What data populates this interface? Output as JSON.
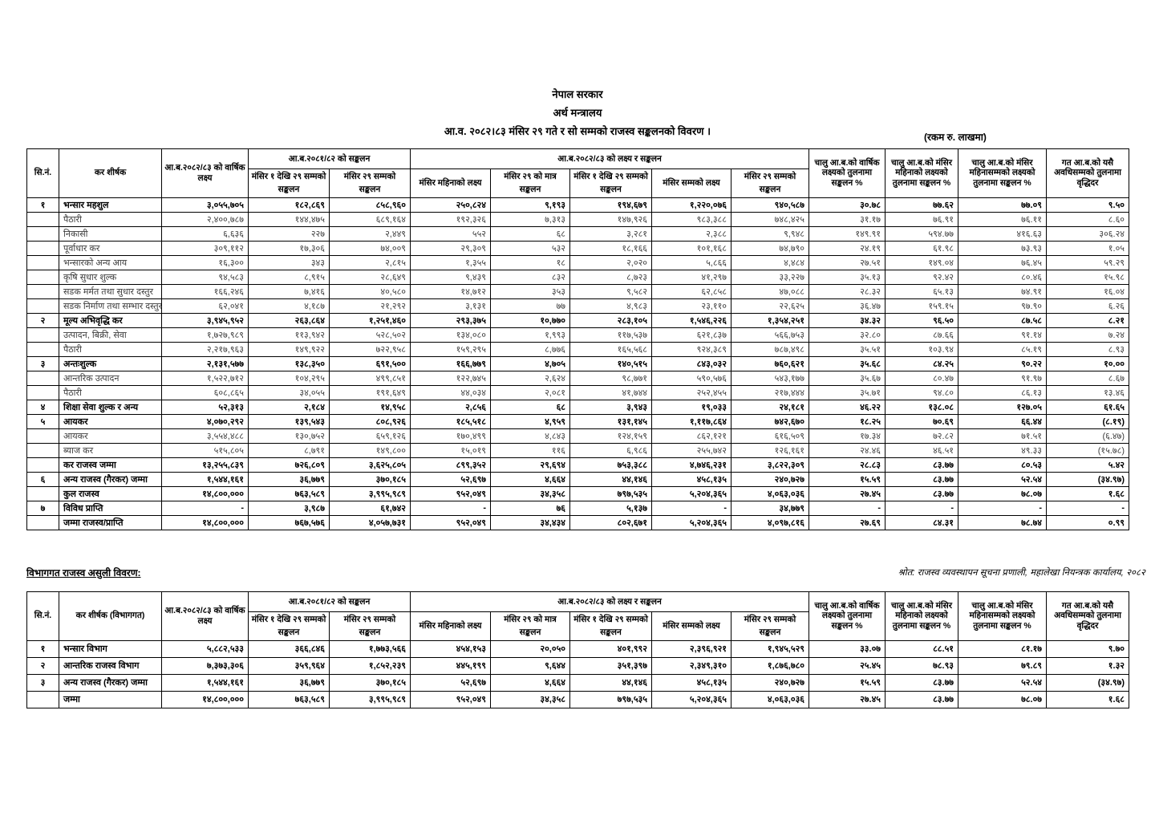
{
  "header": {
    "line1": "नेपाल सरकार",
    "line2": "अर्थ मन्त्रालय",
    "line3": "आ.व. २०८२।८३ मंसिर २९ गते र सो सम्मको राजस्व सङ्कलनको विवरण ।",
    "unit_note": "(रकम रु. लाखमा)"
  },
  "section2": {
    "title": "विभागगत राजस्व असुली विवरण:",
    "source": "श्रोत: राजस्व व्यवस्थापन सूचना प्रणाली, महालेखा नियन्त्रक कार्यालय, २०८२"
  },
  "table1": {
    "head": {
      "sn": "सि.नं.",
      "title": "कर शीर्षक",
      "annual": "आ.ब.२०८२/८३ को वार्षिक लक्ष्य",
      "prev_group": "आ.ब.२०८१/८२ को सङ्कलन",
      "prev_1_29": "मंसिर १ देखि २९ सम्मको सङ्कलन",
      "prev_till_29": "मंसिर २९ सम्मको सङ्कलन",
      "cur_group": "आ.ब.२०८२/८३ को लक्ष्य र सङ्कलन",
      "cur_month_target": "मंसिर महिनाको लक्ष्य",
      "cur_29_only": "मंसिर २९ को मात्र सङ्कलन",
      "cur_1_29": "मंसिर १ देखि २९ सम्मको सङ्कलन",
      "cur_till_target": "मंसिर सम्मको लक्ष्य",
      "cur_till_29": "मंसिर २९ सम्मको सङ्कलन",
      "pct_annual": "चालु आ.ब.को वार्षिक लक्ष्यको तुलनामा सङ्कलन %",
      "pct_month": "चालु आ.ब.को मंसिर महिनाको लक्ष्यको तुलनामा सङ्कलन %",
      "pct_till": "चालु आ.ब.को मंसिर महिनासम्मको लक्ष्यको तुलनामा सङ्कलन %",
      "growth": "गत आ.ब.को यसै अवधिसम्मको तुलनामा वृद्धिदर"
    },
    "rows": [
      {
        "sn": "१",
        "title": "भन्सार महशुल",
        "bold": true,
        "cells": [
          "३,०५५,७०५",
          "१८२,८६९",
          "८५८,९६०",
          "२५०,८२४",
          "९,१९३",
          "१९४,६७९",
          "१,२२०,०७६",
          "९४०,५८७",
          "३०.७८",
          "७७.६२",
          "७७.०९",
          "९.५०"
        ]
      },
      {
        "title": "पैठारी",
        "cells": [
          "२,४००,७८७",
          "१४४,४७५",
          "६८९,१६४",
          "१९२,३२६",
          "७,३१३",
          "१४७,९२६",
          "९८३,३८८",
          "७४८,४२५",
          "३१.१७",
          "७६.९१",
          "७६.११",
          "८.६०"
        ]
      },
      {
        "title": "निकासी",
        "cells": [
          "६,६३६",
          "२२७",
          "२,४४९",
          "५५२",
          "६८",
          "३,२८१",
          "२,३८८",
          "९,९४८",
          "१४९.९१",
          "५९४.७७",
          "४१६.६३",
          "३०६.२४"
        ]
      },
      {
        "title": "पूर्वाधार कर",
        "cells": [
          "३०९,११२",
          "१७,३०६",
          "७४,००९",
          "२९,३०९",
          "५३२",
          "१८,१६६",
          "१०१,१६८",
          "७४,७९०",
          "२४.१९",
          "६१.९८",
          "७३.९३",
          "१.०५"
        ]
      },
      {
        "title": "भन्सारको अन्य आय",
        "cells": [
          "१६,३००",
          "३४३",
          "२,८१५",
          "१,३५५",
          "१८",
          "२,०२०",
          "५,८६६",
          "४,४८४",
          "२७.५१",
          "१४९.०४",
          "७६.४५",
          "५९.२९"
        ]
      },
      {
        "title": "कृषि सुधार शुल्क",
        "cells": [
          "९४,५८३",
          "८,९१५",
          "२८,६४९",
          "९,४३९",
          "८३२",
          "८,७२३",
          "४१,२९७",
          "३३,२२७",
          "३५.१३",
          "९२.४२",
          "८०.४६",
          "१५.९८"
        ]
      },
      {
        "title": "सडक मर्मत तथा सुधार दस्तुर",
        "cells": [
          "१६६,२४६",
          "७,४१६",
          "४०,५८०",
          "१४,७१२",
          "३५३",
          "९,५८२",
          "६२,८५८",
          "४७,०८८",
          "२८.३२",
          "६५.१३",
          "७४.९१",
          "१६.०४"
        ]
      },
      {
        "title": "सडक निर्माण तथा सम्भार दस्तुर",
        "cells": [
          "६२,०४१",
          "४,१८७",
          "२१,२९२",
          "३,१३१",
          "७७",
          "४,९८३",
          "२३,११०",
          "२२,६२५",
          "३६.४७",
          "१५९.१५",
          "९७.९०",
          "६.२६"
        ]
      },
      {
        "sn": "२",
        "title": "मूल्य अभिवृद्धि कर",
        "bold": true,
        "cells": [
          "३,९४५,९५२",
          "२६३,८६४",
          "१,२५१,४६०",
          "२९३,३७५",
          "१०,७७०",
          "२८३,१०५",
          "१,५४६,२२६",
          "१,३५४,२५१",
          "३४.३२",
          "९६.५०",
          "८७.५८",
          "८.२१"
        ]
      },
      {
        "title": "उत्पादन, बिक्री, सेवा",
        "cells": [
          "१,७२७,९८९",
          "११३,९४२",
          "५२८,५०२",
          "१३४,०८०",
          "१,९९३",
          "११७,५३७",
          "६२१,८३७",
          "५६६,७५३",
          "३२.८०",
          "८७.६६",
          "९१.१४",
          "७.२४"
        ]
      },
      {
        "title": "पैठारी",
        "cells": [
          "२,२१७,९६३",
          "१४९,९२२",
          "७२२,९५८",
          "१५९,२९५",
          "८,७७६",
          "१६५,५६८",
          "९२४,३८९",
          "७८७,४९८",
          "३५.५१",
          "१०३.९४",
          "८५.१९",
          "८.९३"
        ]
      },
      {
        "sn": "३",
        "title": "अन्तःशुल्क",
        "bold": true,
        "cells": [
          "२,१३१,५७७",
          "१३८,३५०",
          "६९१,५००",
          "१६६,७७९",
          "४,७०५",
          "१४०,५१५",
          "८४३,०३२",
          "७६०,६२१",
          "३५.६८",
          "८४.२५",
          "९०.२२",
          "१०.००"
        ]
      },
      {
        "title": "आन्तरिक उत्पादन",
        "cells": [
          "१,५२२,७१२",
          "१०४,२९५",
          "४९९,८५१",
          "१२२,७४५",
          "२,६२४",
          "९८,७७१",
          "५९०,५७६",
          "५४३,१७७",
          "३५.६७",
          "८०.४७",
          "९१.९७",
          "८.६७"
        ]
      },
      {
        "title": "पैठारी",
        "cells": [
          "६०८,८६५",
          "३४,०५५",
          "१९१,६४९",
          "४४,०३४",
          "२,०८१",
          "४१,७४४",
          "२५२,४५५",
          "२१७,४४४",
          "३५.७१",
          "९४.८०",
          "८६.१३",
          "१३.४६"
        ]
      },
      {
        "sn": "४",
        "title": "शिक्षा सेवा शुल्क र अन्य",
        "bold": true,
        "cells": [
          "५२,३१३",
          "२,१८४",
          "१४,९५८",
          "२,८५६",
          "६८",
          "३,९४३",
          "१९,०३३",
          "२४,१८१",
          "४६.२२",
          "१३८.०८",
          "१२७.०५",
          "६१.६५"
        ]
      },
      {
        "sn": "५",
        "title": "आयकर",
        "bold": true,
        "cells": [
          "४,०७०,२९२",
          "१३९,५४३",
          "८०८,९२६",
          "१८५,५१८",
          "४,९५९",
          "१३१,१४५",
          "१,११७,८६४",
          "७४२,६७०",
          "१८.२५",
          "७०.६९",
          "६६.४४",
          "(८.१९)"
        ]
      },
      {
        "title": "आयकर",
        "cells": [
          "३,५५४,४८८",
          "१३०,७५२",
          "६५९,१२६",
          "१७०,४९९",
          "४,८४३",
          "१२४,१५९",
          "८६२,१२१",
          "६१६,५०९",
          "१७.३४",
          "७२.८२",
          "७१.५१",
          "(६.४७)"
        ]
      },
      {
        "title": "ब्याज कर",
        "cells": [
          "५१५,८०५",
          "८,७९१",
          "१४९,८००",
          "१५,०१९",
          "११६",
          "६,९८६",
          "२५५,७४२",
          "१२६,१६१",
          "२४.४६",
          "४६.५१",
          "४९.३३",
          "(१५.७८)"
        ]
      },
      {
        "title": "कर राजस्व जम्मा",
        "bold": true,
        "cells": [
          "१३,२५५,८३९",
          "७२६,८०९",
          "३,६२५,८०५",
          "८९९,३५२",
          "२९,६९४",
          "७५३,३८८",
          "४,७४६,२३१",
          "३,८२२,३०९",
          "२८.८३",
          "८३.७७",
          "८०.५३",
          "५.४२"
        ]
      },
      {
        "sn": "६",
        "title": "अन्य राजस्व (गैरकर) जम्मा",
        "bold": true,
        "cells": [
          "१,५४४,१६१",
          "३६,७७९",
          "३७०,१८५",
          "५२,६९७",
          "४,६६४",
          "४४,१४६",
          "४५८,१३५",
          "२४०,७२७",
          "१५.५९",
          "८३.७७",
          "५२.५४",
          "(३४.९७)"
        ]
      },
      {
        "title": "कुल राजस्व",
        "bold": true,
        "cells": [
          "१४,८००,०००",
          "७६३,५८९",
          "३,९९५,९८९",
          "९५२,०४९",
          "३४,३५८",
          "७९७,५३५",
          "५,२०४,३६५",
          "४,०६३,०३६",
          "२७.४५",
          "८३.७७",
          "७८.०७",
          "१.६८"
        ]
      },
      {
        "sn": "७",
        "title": "विविध प्राप्ति",
        "bold": true,
        "cells": [
          "-",
          "३,९८७",
          "६१,७४२",
          "-",
          "७६",
          "५,१३७",
          "-",
          "३४,७७९",
          "-",
          "-",
          "-",
          "-"
        ]
      },
      {
        "title": "जम्मा राजस्व/प्राप्ति",
        "bold": true,
        "cells": [
          "१४,८००,०००",
          "७६७,५७६",
          "४,०५७,७३१",
          "९५२,०४९",
          "३४,४३४",
          "८०२,६७१",
          "५,२०४,३६५",
          "४,०९७,८१६",
          "२७.६९",
          "८४.३१",
          "७८.७४",
          "०.९९"
        ]
      }
    ]
  },
  "table2": {
    "head": {
      "sn": "सि.नं.",
      "title": "कर शीर्षक (विभागगत)",
      "annual": "आ.ब.२०८२/८३ को वार्षिक लक्ष्य",
      "prev_group": "आ.ब.२०८१/८२ को सङ्कलन",
      "prev_1_29": "मंसिर १ देखि २९ सम्मको सङ्कलन",
      "prev_till_29": "मंसिर २९ सम्मको सङ्कलन",
      "cur_group": "आ.ब.२०८२/८३ को लक्ष्य र सङ्कलन",
      "cur_month_target": "मंसिर महिनाको लक्ष्य",
      "cur_29_only": "मंसिर २९ को मात्र सङ्कलन",
      "cur_1_29": "मंसिर १ देखि २९ सम्मको सङ्कलन",
      "cur_till_target": "मंसिर सम्मको लक्ष्य",
      "cur_till_29": "मंसिर २९ सम्मको सङ्कलन",
      "pct_annual": "चालु आ.ब.को वार्षिक लक्ष्यको तुलनामा सङ्कलन %",
      "pct_month": "चालु आ.ब.को मंसिर महिनाको लक्ष्यको तुलनामा सङ्कलन %",
      "pct_till": "चालु आ.ब.को मंसिर महिनासम्मको लक्ष्यको तुलनामा सङ्कलन %",
      "growth": "गत आ.ब.को यसै अवधिसम्मको तुलनामा वृद्धिदर"
    },
    "rows": [
      {
        "sn": "१",
        "title": "भन्सार विभाग",
        "bold": true,
        "cells": [
          "५,८८२,५३३",
          "३६६,८४६",
          "१,७७३,५६६",
          "४५४,१५३",
          "२०,०५०",
          "४०१,९९२",
          "२,३९६,९२१",
          "१,९४५,५२९",
          "३३.०७",
          "८८.५१",
          "८१.१७",
          "९.७०"
        ]
      },
      {
        "sn": "२",
        "title": "आन्तरिक राजस्व विभाग",
        "bold": true,
        "cells": [
          "७,३७३,३०६",
          "३५९,९६४",
          "१,८५२,२३९",
          "४४५,१९९",
          "९,६४४",
          "३५१,३९७",
          "२,३४९,३१०",
          "१,८७६,७८०",
          "२५.४५",
          "७८.९३",
          "७९.८९",
          "१.३२"
        ]
      },
      {
        "sn": "३",
        "title": "अन्य राजस्व (गैरकर) जम्मा",
        "bold": true,
        "cells": [
          "१,५४४,१६१",
          "३६,७७९",
          "३७०,१८५",
          "५२,६९७",
          "४,६६४",
          "४४,१४६",
          "४५८,१३५",
          "२४०,७२७",
          "१५.५९",
          "८३.७७",
          "५२.५४",
          "(३४.९७)"
        ]
      },
      {
        "title": "जम्मा",
        "bold": true,
        "cells": [
          "१४,८००,०००",
          "७६३,५८९",
          "३,९९५,९८९",
          "९५२,०४९",
          "३४,३५८",
          "७९७,५३५",
          "५,२०४,३६५",
          "४,०६३,०३६",
          "२७.४५",
          "८३.७७",
          "७८.०७",
          "१.६८"
        ]
      }
    ]
  }
}
